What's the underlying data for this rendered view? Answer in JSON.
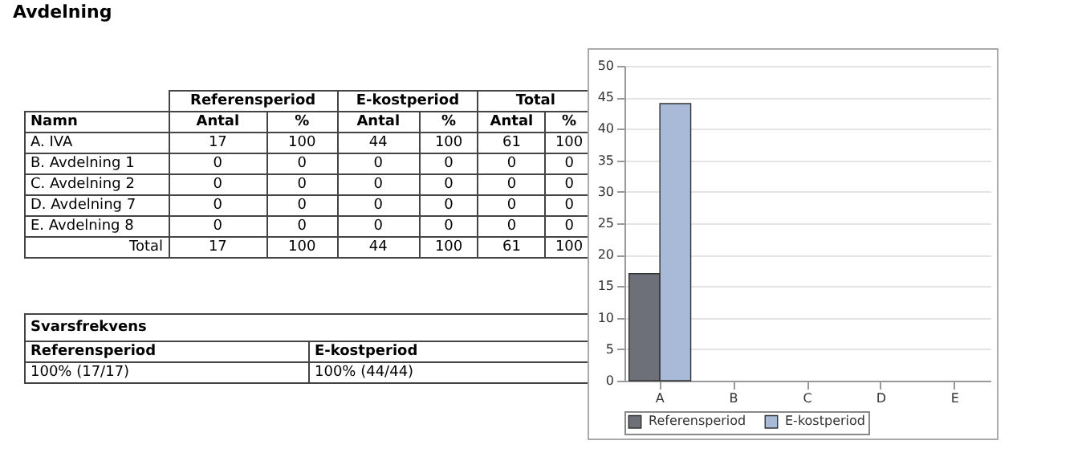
{
  "chart_data": [
    {
      "type": "other",
      "title": "Avdelning",
      "annotations": [
        "Referensperiod",
        "E-kostperiod",
        "Total",
        "Namn",
        "Antal",
        "%",
        "Antal",
        "%",
        "Antal",
        "%",
        "A. IVA",
        "17",
        "100",
        "44",
        "100",
        "61",
        "100",
        "B. Avdelning 1",
        "0",
        "0",
        "0",
        "0",
        "0",
        "0",
        "C. Avdelning 2",
        "0",
        "0",
        "0",
        "0",
        "0",
        "0",
        "D. Avdelning 7",
        "0",
        "0",
        "0",
        "0",
        "0",
        "0",
        "E. Avdelning 8",
        "0",
        "0",
        "0",
        "0",
        "0",
        "0",
        "Total",
        "17",
        "100",
        "44",
        "100",
        "61",
        "100",
        "Svarsfrekvens",
        "Referensperiod",
        "E-kostperiod",
        "100% (17/17)",
        "100% (44/44)"
      ]
    },
    {
      "type": "bar",
      "categories": [
        "A",
        "B",
        "C",
        "D",
        "E"
      ],
      "series": [
        {
          "name": "Referensperiod",
          "color": "#6d7078",
          "values": [
            17,
            0,
            0,
            0,
            0
          ]
        },
        {
          "name": "E-kostperiod",
          "color": "#a9b9d8",
          "values": [
            44,
            0,
            0,
            0,
            0
          ]
        }
      ],
      "ylim": [
        0,
        50
      ],
      "yticks": [
        0,
        5,
        10,
        15,
        20,
        25,
        30,
        35,
        40,
        45,
        50
      ],
      "grid": "y",
      "legend": "bottom"
    }
  ]
}
